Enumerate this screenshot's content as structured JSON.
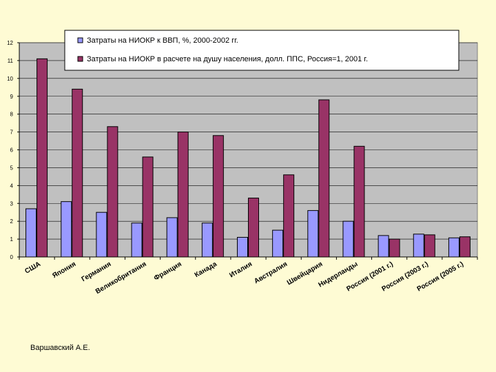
{
  "chart_data": {
    "type": "bar",
    "title": "",
    "xlabel": "",
    "ylabel": "",
    "ylim": [
      0,
      12
    ],
    "yticks": [
      0,
      1,
      2,
      3,
      4,
      5,
      6,
      7,
      8,
      9,
      10,
      11,
      12
    ],
    "grid": true,
    "legend_position": "top",
    "categories": [
      "США",
      "Япония",
      "Германия",
      "Великобритания",
      "Франция",
      "Канада",
      "Италия",
      "Австралия",
      "Швейцария",
      "Нидерланды",
      "Россия (2001 г.)",
      "Россия (2003 г.)",
      "Россия (2005 г.)"
    ],
    "series": [
      {
        "name": "Затраты на НИОКР к ВВП, %, 2000-2002 гг.",
        "color": "#9999ff",
        "values": [
          2.7,
          3.1,
          2.5,
          1.9,
          2.2,
          1.9,
          1.1,
          1.5,
          2.6,
          2.0,
          1.2,
          1.28,
          1.07
        ]
      },
      {
        "name": "Затраты на НИОКР в расчете на душу населения, долл. ППС, Россия=1, 2001 г.",
        "color": "#993366",
        "values": [
          11.1,
          9.4,
          7.3,
          5.6,
          7.0,
          6.8,
          3.3,
          4.6,
          8.8,
          6.2,
          1.0,
          1.24,
          1.13
        ]
      }
    ],
    "plot_background": "#c0c0c0",
    "page_background": "#fefbd4"
  },
  "credit": "Варшавский А.Е."
}
